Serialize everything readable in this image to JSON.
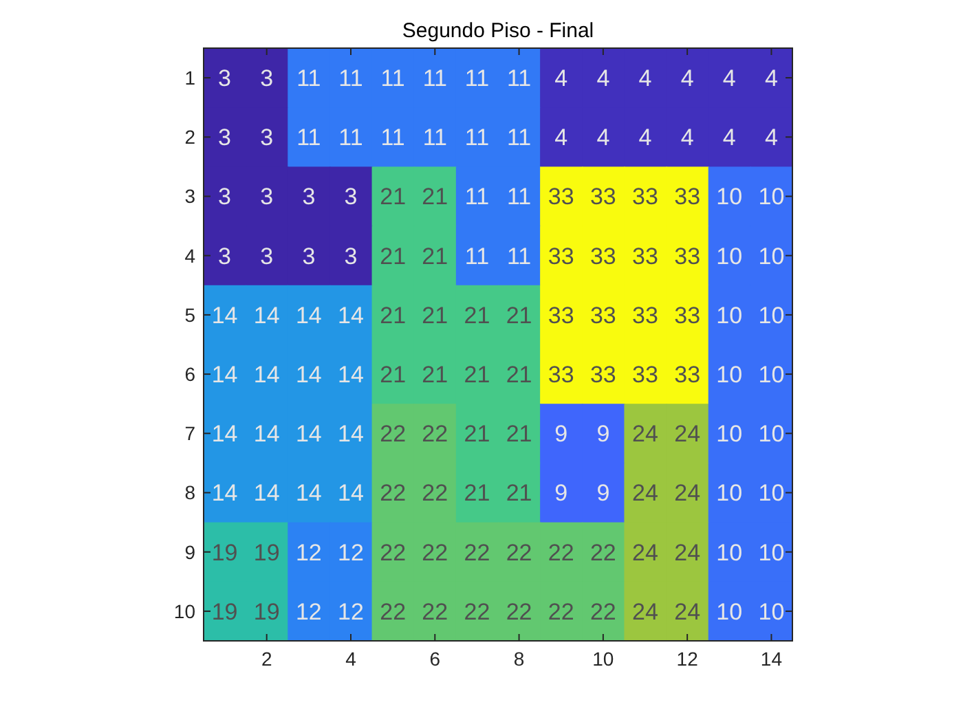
{
  "chart_data": {
    "type": "heatmap",
    "title": "Segundo Piso - Final",
    "categories": [
      null,
      "2",
      null,
      "4",
      null,
      "6",
      null,
      "8",
      null,
      "10",
      null,
      "12",
      null,
      "14"
    ],
    "y_categories": [
      "1",
      "2",
      "3",
      "4",
      "5",
      "6",
      "7",
      "8",
      "9",
      "10"
    ],
    "cells": [
      [
        3,
        3,
        11,
        11,
        11,
        11,
        11,
        11,
        4,
        4,
        4,
        4,
        4,
        4
      ],
      [
        3,
        3,
        11,
        11,
        11,
        11,
        11,
        11,
        4,
        4,
        4,
        4,
        4,
        4
      ],
      [
        3,
        3,
        3,
        3,
        21,
        21,
        11,
        11,
        33,
        33,
        33,
        33,
        10,
        10
      ],
      [
        3,
        3,
        3,
        3,
        21,
        21,
        11,
        11,
        33,
        33,
        33,
        33,
        10,
        10
      ],
      [
        14,
        14,
        14,
        14,
        21,
        21,
        21,
        21,
        33,
        33,
        33,
        33,
        10,
        10
      ],
      [
        14,
        14,
        14,
        14,
        21,
        21,
        21,
        21,
        33,
        33,
        33,
        33,
        10,
        10
      ],
      [
        14,
        14,
        14,
        14,
        22,
        22,
        21,
        21,
        9,
        9,
        24,
        24,
        10,
        10
      ],
      [
        14,
        14,
        14,
        14,
        22,
        22,
        21,
        21,
        9,
        9,
        24,
        24,
        10,
        10
      ],
      [
        19,
        19,
        12,
        12,
        22,
        22,
        22,
        22,
        22,
        22,
        24,
        24,
        10,
        10
      ],
      [
        19,
        19,
        12,
        12,
        22,
        22,
        22,
        22,
        22,
        22,
        24,
        24,
        10,
        10
      ]
    ],
    "data_labels": true
  }
}
